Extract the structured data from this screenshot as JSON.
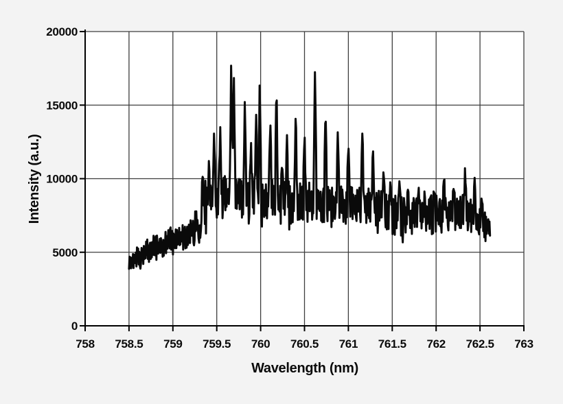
{
  "chart_data": {
    "type": "line",
    "title": "",
    "xlabel": "Wavelength (nm)",
    "ylabel": "Intensity (a.u.)",
    "xlim": [
      758,
      763
    ],
    "ylim": [
      0,
      20000
    ],
    "xticks": [
      758,
      758.5,
      759,
      759.5,
      760,
      760.5,
      761,
      761.5,
      762,
      762.5,
      763
    ],
    "xtick_labels": [
      "758",
      "758.5",
      "759",
      "759.5",
      "760",
      "760.5",
      "761",
      "761.5",
      "762",
      "762.5",
      "763"
    ],
    "yticks": [
      0,
      5000,
      10000,
      15000,
      20000
    ],
    "ytick_labels": [
      "0",
      "5000",
      "10000",
      "15000",
      "20000"
    ],
    "grid": true,
    "legend": "none",
    "series_count": 1,
    "x_start": 758.5,
    "x_end": 762.62,
    "sample_step": 0.0065,
    "noise_seed": 11,
    "peak_width_nm": 0.015,
    "envelope": [
      [
        758.5,
        3700,
        4700
      ],
      [
        758.6,
        4000,
        5500
      ],
      [
        758.75,
        4400,
        6100
      ],
      [
        758.9,
        4600,
        6400
      ],
      [
        759.0,
        4800,
        6800
      ],
      [
        759.1,
        5100,
        7000
      ],
      [
        759.2,
        5400,
        7400
      ],
      [
        759.28,
        5800,
        8000
      ],
      [
        759.35,
        6600,
        9800
      ],
      [
        759.45,
        7200,
        10300
      ],
      [
        759.6,
        7200,
        10300
      ],
      [
        759.8,
        7300,
        10100
      ],
      [
        760.0,
        7100,
        10000
      ],
      [
        760.2,
        6900,
        9900
      ],
      [
        760.4,
        7000,
        9800
      ],
      [
        760.6,
        7100,
        9900
      ],
      [
        760.8,
        7000,
        9600
      ],
      [
        761.0,
        6900,
        9500
      ],
      [
        761.2,
        6900,
        9400
      ],
      [
        761.35,
        6700,
        9200
      ],
      [
        761.5,
        6200,
        9000
      ],
      [
        761.65,
        6100,
        8800
      ],
      [
        761.8,
        6200,
        8800
      ],
      [
        762.0,
        6200,
        8900
      ],
      [
        762.15,
        6400,
        9000
      ],
      [
        762.3,
        6400,
        8900
      ],
      [
        762.45,
        6200,
        8500
      ],
      [
        762.55,
        6000,
        7800
      ],
      [
        762.62,
        6100,
        7300
      ]
    ],
    "peaks": [
      [
        759.34,
        10400
      ],
      [
        759.41,
        11200
      ],
      [
        759.47,
        13300
      ],
      [
        759.54,
        13500
      ],
      [
        759.665,
        18350
      ],
      [
        759.695,
        17200
      ],
      [
        759.82,
        15350
      ],
      [
        759.89,
        12600
      ],
      [
        759.95,
        14500
      ],
      [
        759.99,
        16850
      ],
      [
        760.11,
        14250
      ],
      [
        760.18,
        16600
      ],
      [
        760.245,
        11500
      ],
      [
        760.3,
        13100
      ],
      [
        760.4,
        14750
      ],
      [
        760.5,
        13200
      ],
      [
        760.62,
        17800
      ],
      [
        760.74,
        14850
      ],
      [
        760.88,
        13450
      ],
      [
        761.0,
        12750
      ],
      [
        761.16,
        13500
      ],
      [
        761.28,
        12250
      ],
      [
        761.4,
        10600
      ],
      [
        761.48,
        9900
      ],
      [
        761.58,
        9900
      ],
      [
        761.68,
        9500
      ],
      [
        761.8,
        9500
      ],
      [
        761.87,
        9250
      ],
      [
        761.98,
        9450
      ],
      [
        762.09,
        10300
      ],
      [
        762.2,
        9500
      ],
      [
        762.33,
        10900
      ],
      [
        762.44,
        10150
      ],
      [
        762.52,
        8800
      ]
    ]
  },
  "colors": {
    "page_background": "#f3f3f3",
    "plot_background": "#ffffff",
    "gridline": "#3d3d3d",
    "axis": "#000000",
    "trace": "#0a0a0a",
    "text": "#0a0a0a"
  }
}
